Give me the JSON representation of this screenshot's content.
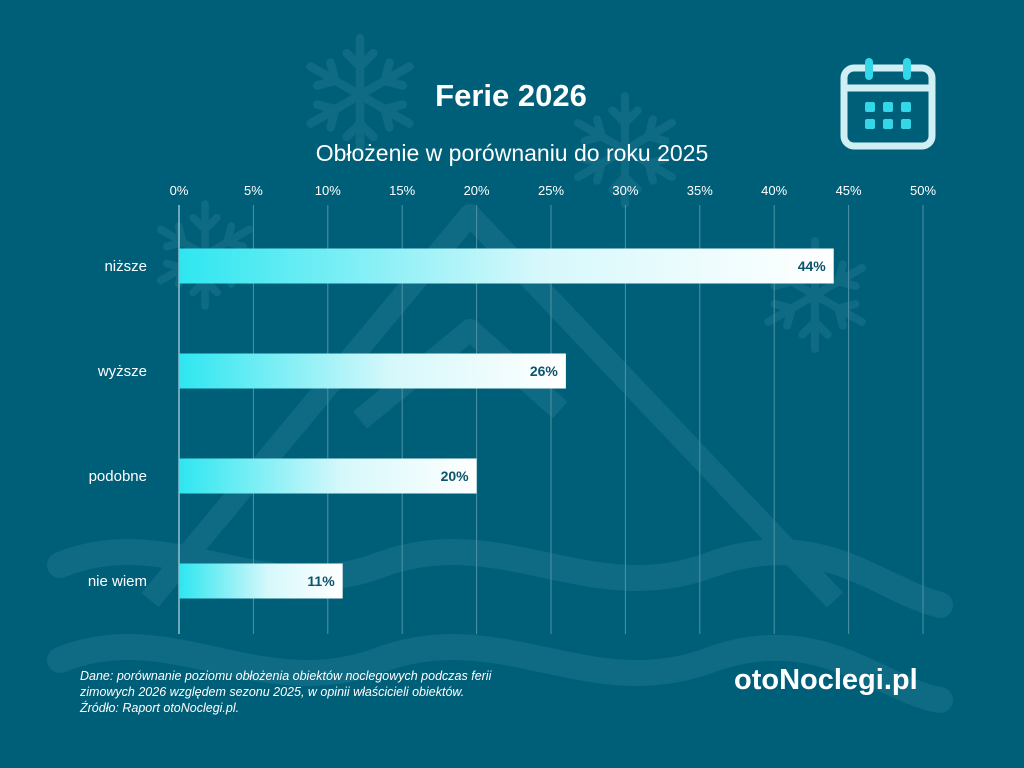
{
  "header": {
    "title": "Ferie 2026",
    "subtitle": "Obłożenie w porównaniu do roku 2025"
  },
  "chart_data": {
    "type": "bar",
    "orientation": "horizontal",
    "title": "Obłożenie w porównaniu do roku 2025",
    "categories": [
      "niższe",
      "wyższe",
      "podobne",
      "nie wiem"
    ],
    "values": [
      44,
      26,
      20,
      11
    ],
    "value_labels": [
      "44%",
      "26%",
      "20%",
      "11%"
    ],
    "x_ticks": [
      "0%",
      "5%",
      "10%",
      "15%",
      "20%",
      "25%",
      "30%",
      "35%",
      "40%",
      "45%",
      "50%"
    ],
    "xlim": [
      0,
      50
    ],
    "xlabel": "",
    "ylabel": "",
    "grid": true
  },
  "footer": {
    "note_lines": [
      "Dane: porównanie poziomu obłożenia obiektów noclegowych podczas ferii",
      "zimowych 2026 względem sezonu 2025, w opinii właścicieli obiektów.",
      "Źródło: Raport otoNoclegi.pl."
    ],
    "brand": "otoNoclegi.pl"
  },
  "colors": {
    "background": "#005f78",
    "bar_start": "#2ee6f0",
    "bar_end": "#ffffff",
    "grid": "#4f93a6",
    "label": "#0b5369",
    "icon": "#cfeff5",
    "icon_accent": "#33d7e8"
  },
  "icons": {
    "calendar": "calendar-icon",
    "decor": "snowflake-icon"
  }
}
